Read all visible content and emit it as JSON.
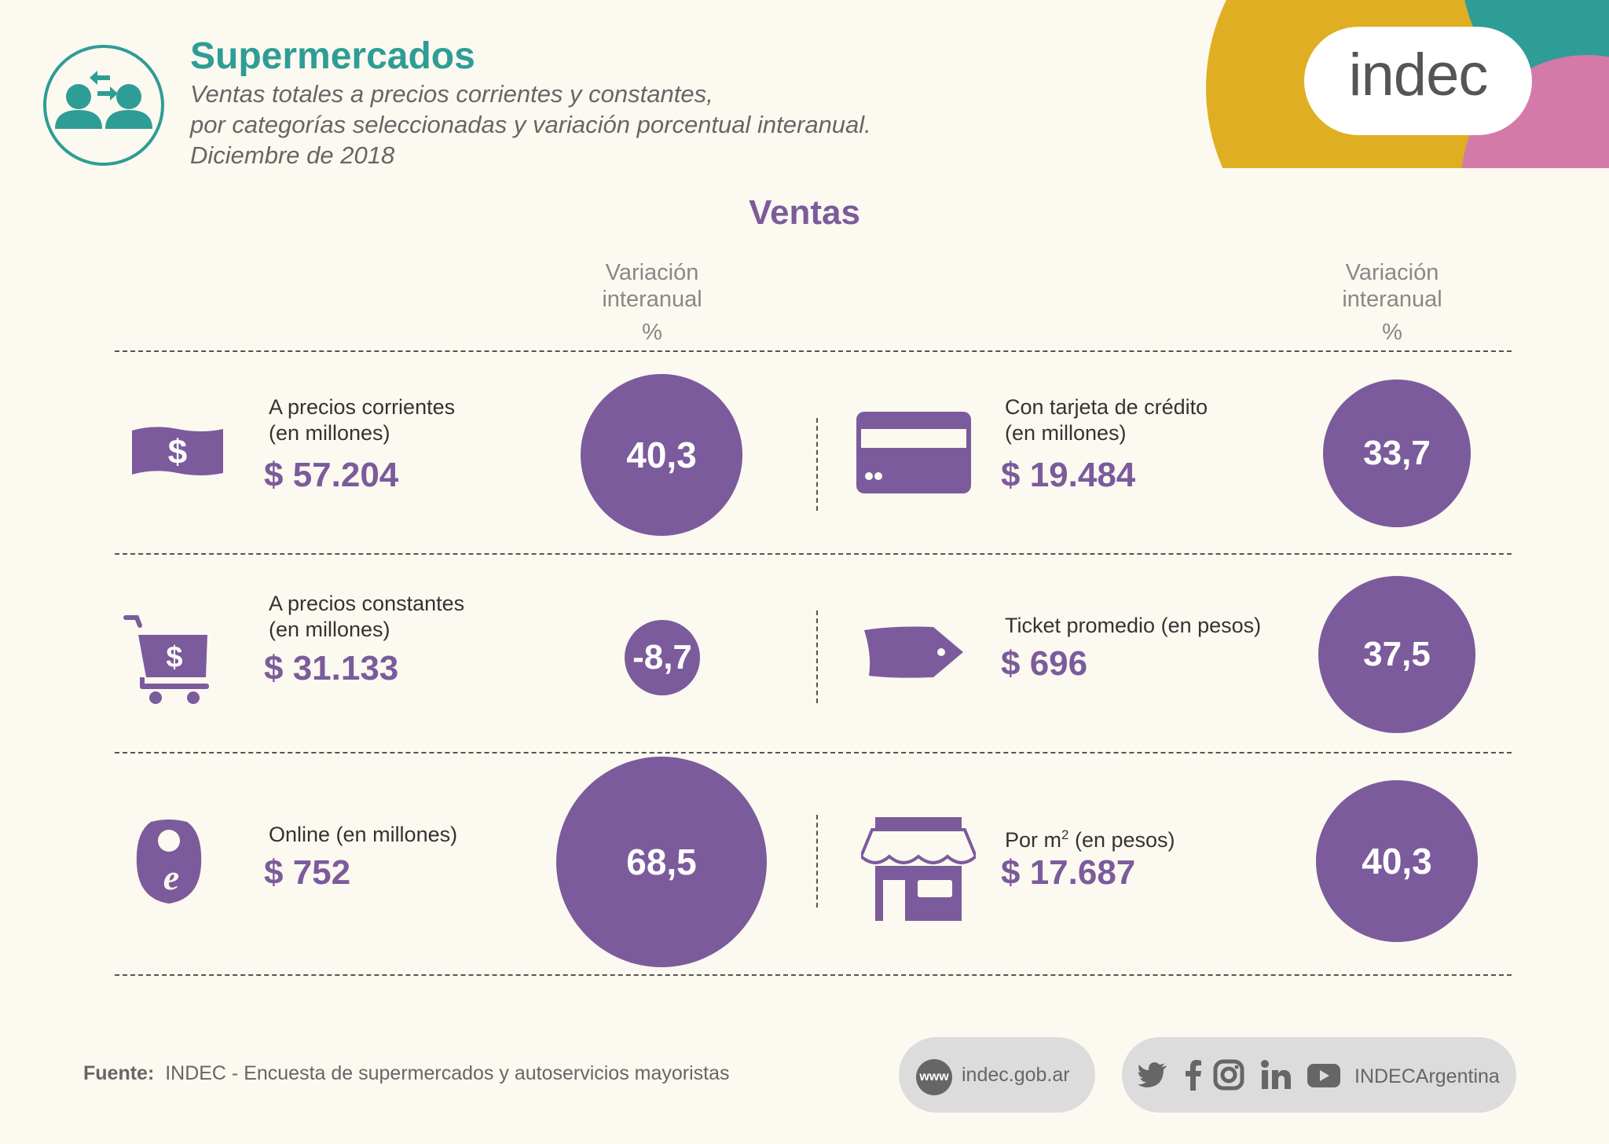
{
  "header": {
    "title": "Supermercados",
    "subtitle_line1": "Ventas totales a precios corrientes y constantes,",
    "subtitle_line2": "por categorías seleccionadas y variación porcentual interanual.",
    "subtitle_line3": "Diciembre de 2018",
    "logo_text": "indec"
  },
  "section_title": "Ventas",
  "variation_header": {
    "line1": "Variación",
    "line2": "interanual",
    "unit": "%"
  },
  "categories": [
    {
      "icon": "banknote-dollar-icon",
      "label_line1": "A precios corrientes",
      "label_line2": "(en millones)",
      "value": "$ 57.204",
      "variation": "40,3"
    },
    {
      "icon": "credit-card-icon",
      "label_line1": "Con tarjeta de crédito",
      "label_line2": "(en millones)",
      "value": "$ 19.484",
      "variation": "33,7"
    },
    {
      "icon": "shopping-cart-dollar-icon",
      "label_line1": "A precios constantes",
      "label_line2": "(en millones)",
      "value": "$ 31.133",
      "variation": "-8,7"
    },
    {
      "icon": "price-tag-icon",
      "label_line1": "Ticket promedio (en pesos)",
      "label_line2": "",
      "value": "$ 696",
      "variation": "37,5"
    },
    {
      "icon": "online-bag-icon",
      "label_line1": "Online (en millones)",
      "label_line2": "",
      "value": "$ 752",
      "variation": "68,5"
    },
    {
      "icon": "storefront-icon",
      "label_line1": "Por m",
      "label_sup": "2",
      "label_rest": " (en pesos)",
      "value": "$ 17.687",
      "variation": "40,3"
    }
  ],
  "footer": {
    "source_label": "Fuente:",
    "source_text": "INDEC - Encuesta de supermercados y autoservicios mayoristas",
    "www_badge": "www",
    "website": "indec.gob.ar",
    "social_handle": "INDECArgentina"
  },
  "colors": {
    "accent_purple": "#7b5b9c",
    "teal": "#2e9d95",
    "mustard": "#dfae22",
    "pink": "#d47aa8",
    "background": "#fcf9f0"
  }
}
